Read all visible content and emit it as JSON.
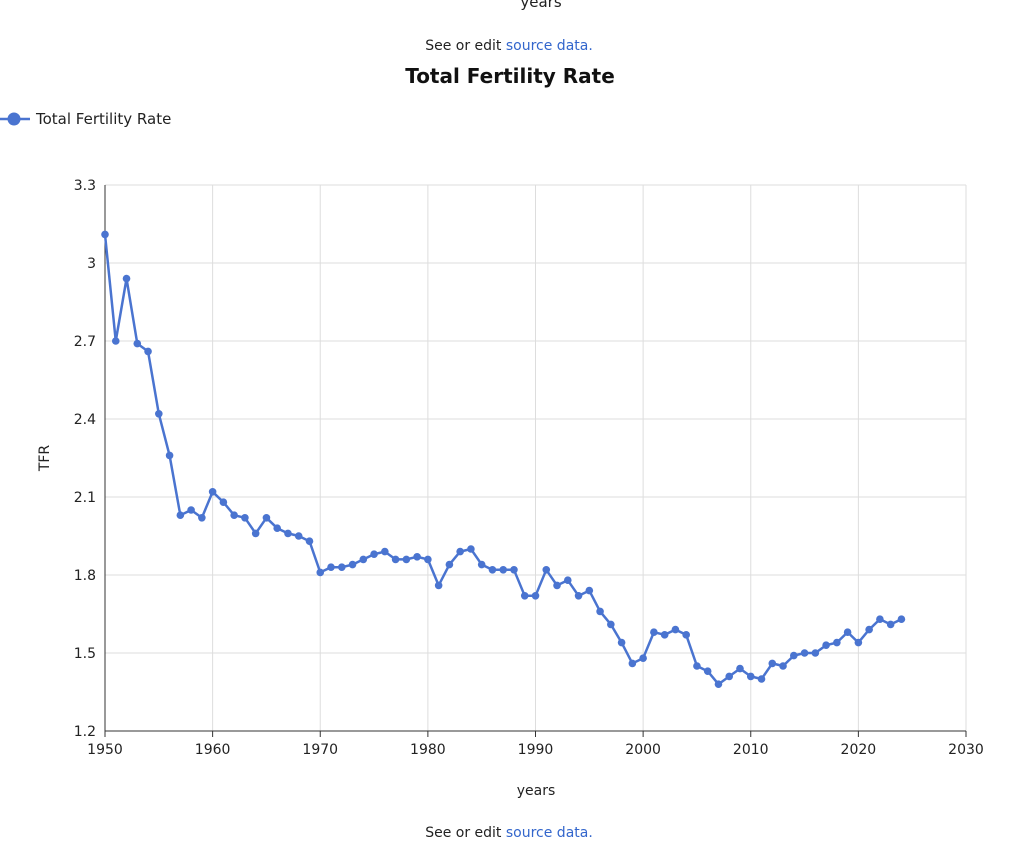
{
  "top_clipped_label": "years",
  "caption_top": {
    "prefix": "See or edit ",
    "link": "source data."
  },
  "caption_bottom": {
    "prefix": "See or edit ",
    "link": "source data."
  },
  "colors": {
    "series": "#4a74d0",
    "grid": "#dddddd",
    "axis": "#333333",
    "link": "#3366cc"
  },
  "chart_data": {
    "type": "line",
    "title": "Total Fertility Rate",
    "xlabel": "years",
    "ylabel": "TFR",
    "xlim": [
      1950,
      2030
    ],
    "ylim": [
      1.2,
      3.3
    ],
    "x_ticks": [
      1950,
      1960,
      1970,
      1980,
      1990,
      2000,
      2010,
      2020,
      2030
    ],
    "y_ticks": [
      1.2,
      1.5,
      1.8,
      2.1,
      2.4,
      2.7,
      3,
      3.3
    ],
    "grid": true,
    "legend_position": "top-left",
    "series": [
      {
        "name": "Total Fertility Rate",
        "x": [
          1950,
          1951,
          1952,
          1953,
          1954,
          1955,
          1956,
          1957,
          1958,
          1959,
          1960,
          1961,
          1962,
          1963,
          1964,
          1965,
          1966,
          1967,
          1968,
          1969,
          1970,
          1971,
          1972,
          1973,
          1974,
          1975,
          1976,
          1977,
          1978,
          1979,
          1980,
          1981,
          1982,
          1983,
          1984,
          1985,
          1986,
          1987,
          1988,
          1989,
          1990,
          1991,
          1992,
          1993,
          1994,
          1995,
          1996,
          1997,
          1998,
          1999,
          2000,
          2001,
          2002,
          2003,
          2004,
          2005,
          2006,
          2007,
          2008,
          2009,
          2010,
          2011,
          2012,
          2013,
          2014,
          2015,
          2016,
          2017,
          2018,
          2019,
          2020,
          2021,
          2022,
          2023,
          2024
        ],
        "y": [
          3.11,
          2.7,
          2.94,
          2.69,
          2.66,
          2.42,
          2.26,
          2.03,
          2.05,
          2.02,
          2.12,
          2.08,
          2.03,
          2.02,
          1.96,
          2.02,
          1.98,
          1.96,
          1.95,
          1.93,
          1.81,
          1.83,
          1.83,
          1.84,
          1.86,
          1.88,
          1.89,
          1.86,
          1.86,
          1.87,
          1.86,
          1.76,
          1.84,
          1.89,
          1.9,
          1.84,
          1.82,
          1.82,
          1.82,
          1.72,
          1.72,
          1.82,
          1.76,
          1.78,
          1.72,
          1.74,
          1.66,
          1.61,
          1.54,
          1.46,
          1.48,
          1.58,
          1.57,
          1.59,
          1.57,
          1.45,
          1.43,
          1.38,
          1.41,
          1.44,
          1.41,
          1.4,
          1.46,
          1.45,
          1.49,
          1.5,
          1.5,
          1.53,
          1.54,
          1.58,
          1.54,
          1.59,
          1.63,
          1.61,
          1.63
        ]
      }
    ]
  }
}
